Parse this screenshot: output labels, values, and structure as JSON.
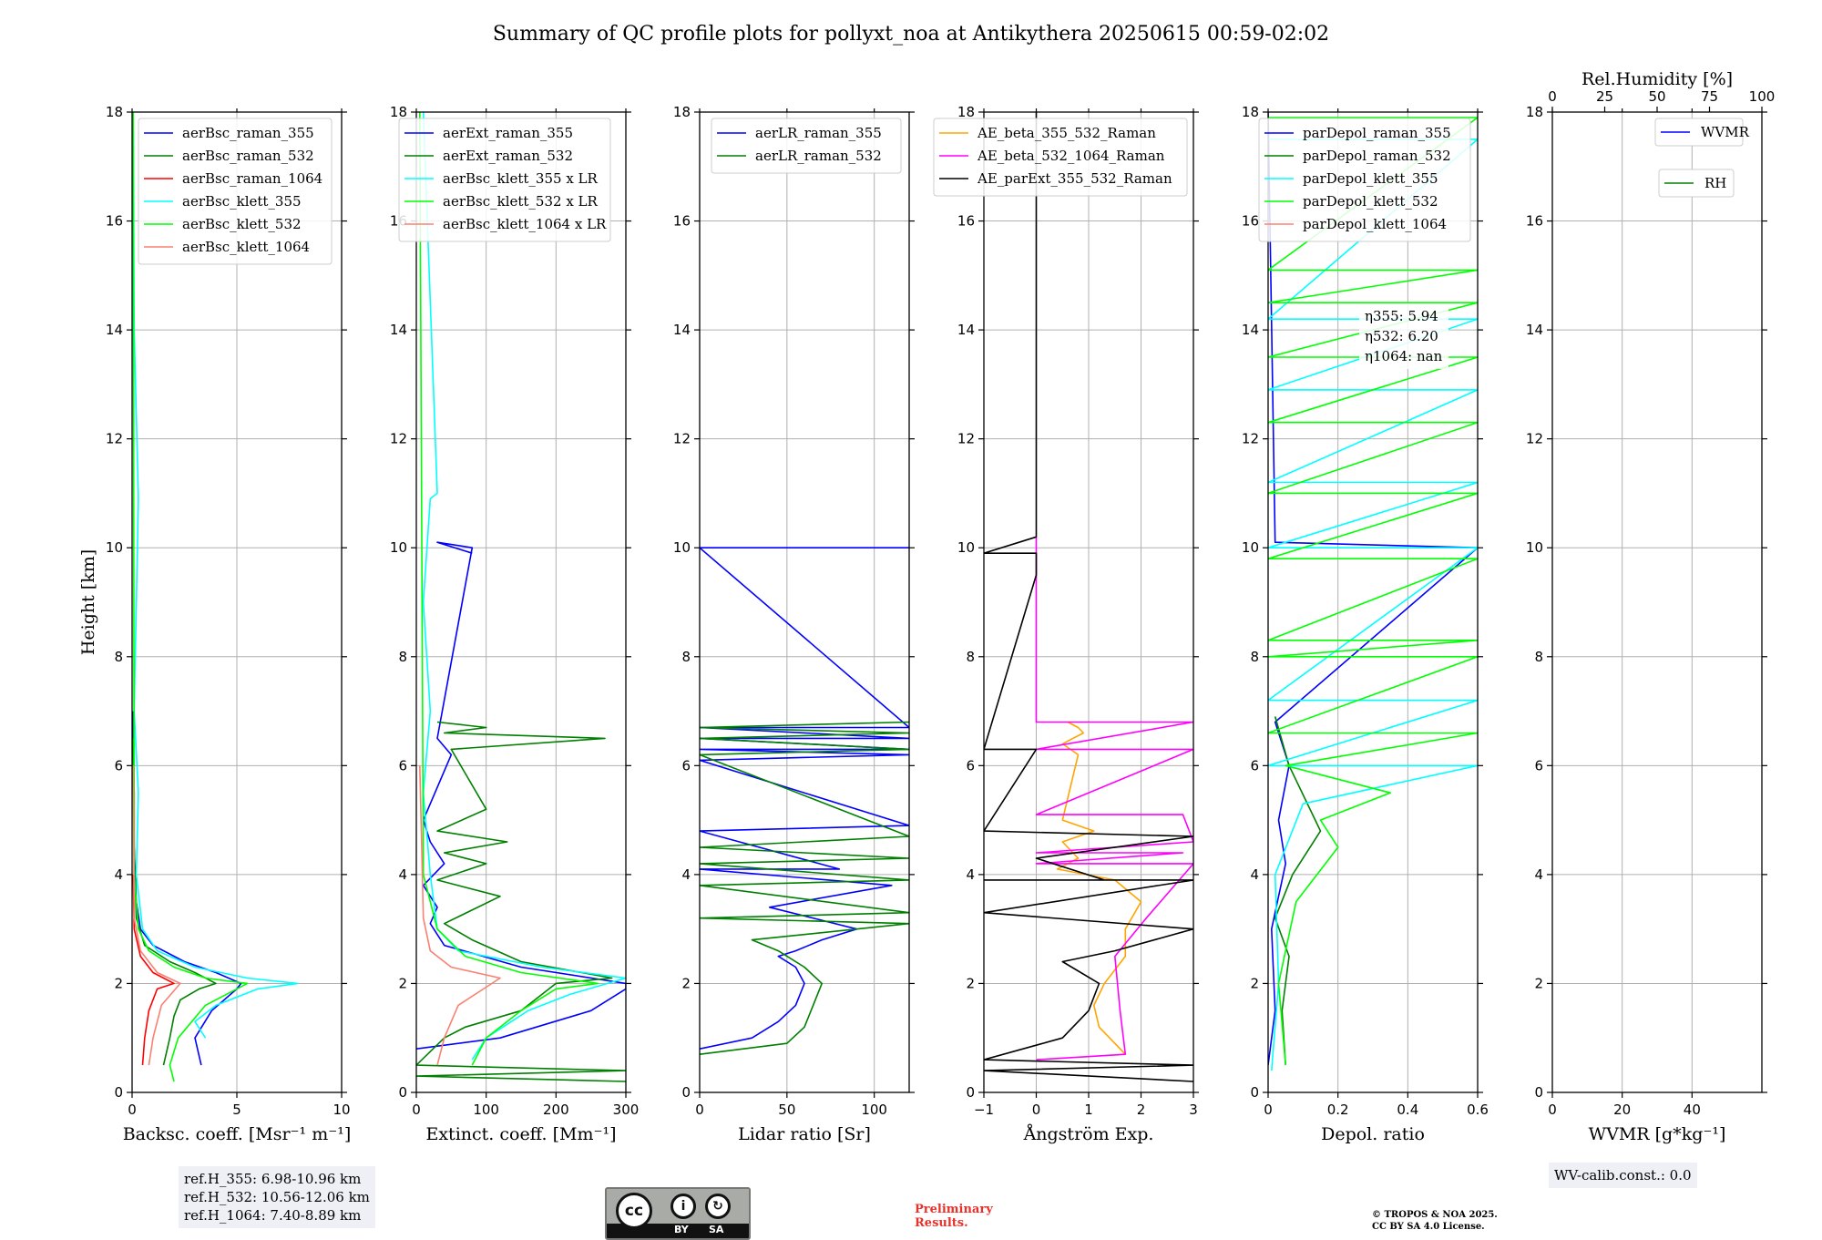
{
  "title": "Summary of QC profile plots for pollyxt_noa at Antikythera 20250615 00:59-02:02",
  "footer": {
    "ref_heights": [
      "ref.H_355: 6.98-10.96 km",
      "ref.H_532: 10.56-12.06 km",
      "ref.H_1064: 7.40-8.89 km"
    ],
    "license_badge": {
      "by": "BY",
      "sa": "SA"
    },
    "preliminary": [
      "Preliminary",
      "Results."
    ],
    "copyright": [
      "© TROPOS & NOA 2025.",
      "CC BY SA 4.0 License."
    ],
    "wv_calib": "WV-calib.const.: 0.0"
  },
  "colors": {
    "blue": "#0000ff",
    "green": "#008000",
    "red": "#ff0000",
    "cyan": "#00ffff",
    "lime": "#00ff00",
    "salmon": "#fa8072",
    "orange": "#ffa500",
    "magenta": "#ff00ff",
    "black": "#000000",
    "grid": "#b0b0b0"
  },
  "chart_data": [
    {
      "type": "line",
      "panel": "backscatter",
      "ylabel": "Height [km]",
      "xlabel": "Backsc. coeff. [Msr⁻¹ m⁻¹]",
      "xlim": [
        0,
        10
      ],
      "xticks": [
        0,
        5,
        10
      ],
      "ylim": [
        0,
        18
      ],
      "yticks": [
        0,
        2,
        4,
        6,
        8,
        10,
        12,
        14,
        16,
        18
      ],
      "grid": true,
      "legend_position": "top-right",
      "series": [
        {
          "name": "aerBsc_raman_355",
          "color": "#0000ff",
          "x": [
            3.3,
            3.0,
            3.8,
            5.0,
            5.2,
            4.0,
            2.5,
            1.0,
            0.4,
            0.2,
            0.1,
            0.1,
            0.05,
            0.05
          ],
          "y": [
            0.5,
            1.0,
            1.5,
            1.9,
            2.0,
            2.2,
            2.4,
            2.7,
            3.0,
            3.5,
            4.5,
            5.5,
            6.5,
            7.0
          ]
        },
        {
          "name": "aerBsc_raman_532",
          "color": "#008000",
          "x": [
            1.5,
            1.8,
            2.0,
            2.3,
            3.2,
            4.0,
            3.0,
            1.8,
            0.6,
            0.2,
            0.1,
            0.05
          ],
          "y": [
            0.5,
            1.0,
            1.4,
            1.7,
            1.9,
            2.0,
            2.2,
            2.4,
            2.7,
            3.2,
            4.5,
            6.5
          ]
        },
        {
          "name": "aerBsc_raman_1064",
          "color": "#ff0000",
          "x": [
            0.5,
            0.6,
            0.8,
            1.2,
            2.0,
            1.0,
            0.4,
            0.1,
            0.05
          ],
          "y": [
            0.5,
            1.0,
            1.5,
            1.9,
            2.0,
            2.2,
            2.5,
            3.0,
            4.0
          ]
        },
        {
          "name": "aerBsc_klett_355",
          "color": "#00ffff",
          "x": [
            3.5,
            3.0,
            4.0,
            6.0,
            7.9,
            5.5,
            3.0,
            1.2,
            0.5,
            0.2,
            0.3,
            0.1,
            0.3,
            0.1,
            0.05
          ],
          "y": [
            1.0,
            1.3,
            1.6,
            1.9,
            2.0,
            2.1,
            2.3,
            2.6,
            3.0,
            4.0,
            5.5,
            7.0,
            10.9,
            14.0,
            18.0
          ]
        },
        {
          "name": "aerBsc_klett_532",
          "color": "#00ff00",
          "x": [
            2.0,
            1.8,
            2.2,
            3.5,
            5.5,
            3.5,
            2.0,
            0.8,
            0.3,
            0.1,
            0.05
          ],
          "y": [
            0.2,
            0.5,
            1.0,
            1.6,
            2.0,
            2.1,
            2.3,
            2.6,
            3.0,
            4.0,
            18.0
          ]
        },
        {
          "name": "aerBsc_klett_1064",
          "color": "#fa8072",
          "x": [
            0.8,
            1.0,
            1.4,
            2.3,
            1.2,
            0.4,
            0.1,
            0.05
          ],
          "y": [
            0.5,
            1.0,
            1.6,
            2.0,
            2.2,
            2.6,
            3.2,
            6.0
          ]
        }
      ]
    },
    {
      "type": "line",
      "panel": "extinction",
      "xlabel": "Extinct. coeff. [Mm⁻¹]",
      "xlim": [
        0,
        300
      ],
      "xticks": [
        0,
        100,
        200,
        300
      ],
      "ylim": [
        0,
        18
      ],
      "yticks": [
        0,
        2,
        4,
        6,
        8,
        10,
        12,
        14,
        16,
        18
      ],
      "grid": true,
      "legend_position": "top-left",
      "series": [
        {
          "name": "aerExt_raman_355",
          "color": "#0000ff",
          "x": [
            0,
            120,
            250,
            300,
            300,
            150,
            40,
            20,
            30,
            10,
            40,
            20,
            10,
            20,
            50,
            30,
            80,
            30,
            80
          ],
          "y": [
            0.8,
            1.0,
            1.5,
            1.9,
            2.0,
            2.3,
            2.7,
            3.1,
            3.4,
            3.8,
            4.2,
            4.6,
            5.0,
            5.3,
            6.2,
            6.5,
            10.0,
            10.1,
            9.9
          ]
        },
        {
          "name": "aerExt_raman_532",
          "color": "#008000",
          "x": [
            300,
            0,
            300,
            0,
            40,
            70,
            150,
            200,
            280,
            150,
            80,
            40,
            120,
            30,
            100,
            40,
            130,
            30,
            100,
            50,
            270,
            40,
            100,
            30
          ],
          "y": [
            0.2,
            0.3,
            0.4,
            0.5,
            1.0,
            1.2,
            1.5,
            2.0,
            2.1,
            2.4,
            2.8,
            3.1,
            3.6,
            3.9,
            4.2,
            4.4,
            4.6,
            4.8,
            5.2,
            6.3,
            6.5,
            6.6,
            6.7,
            6.8
          ]
        },
        {
          "name": "aerBsc_klett_355 x LR",
          "color": "#00ffff",
          "x": [
            80,
            100,
            160,
            220,
            300,
            180,
            60,
            30,
            20,
            10,
            20,
            10,
            20,
            30,
            10
          ],
          "y": [
            0.6,
            1.0,
            1.5,
            1.8,
            2.1,
            2.3,
            2.6,
            3.0,
            4.0,
            5.5,
            7.0,
            9.0,
            10.9,
            11.0,
            18.0
          ]
        },
        {
          "name": "aerBsc_klett_532 x LR",
          "color": "#00ff00",
          "x": [
            80,
            100,
            150,
            200,
            260,
            150,
            70,
            30,
            10,
            5
          ],
          "y": [
            0.5,
            1.0,
            1.5,
            1.9,
            2.0,
            2.2,
            2.5,
            3.0,
            4.0,
            18.0
          ]
        },
        {
          "name": "aerBsc_klett_1064 x LR",
          "color": "#fa8072",
          "x": [
            30,
            40,
            60,
            120,
            50,
            20,
            10,
            5
          ],
          "y": [
            0.5,
            1.0,
            1.6,
            2.1,
            2.3,
            2.6,
            3.2,
            6.0
          ]
        }
      ]
    },
    {
      "type": "line",
      "panel": "lidar_ratio",
      "xlabel": "Lidar ratio [Sr]",
      "xlim": [
        0,
        120
      ],
      "xticks": [
        0,
        50,
        100
      ],
      "ylim": [
        0,
        18
      ],
      "yticks": [
        0,
        2,
        4,
        6,
        8,
        10,
        12,
        14,
        16,
        18
      ],
      "grid": true,
      "legend_position": "top-right",
      "series": [
        {
          "name": "aerLR_raman_355",
          "color": "#0000ff",
          "x": [
            0,
            30,
            45,
            55,
            60,
            55,
            45,
            55,
            70,
            90,
            40,
            110,
            0,
            80,
            0,
            120,
            0,
            120,
            0,
            120,
            0,
            120,
            0,
            120,
            0,
            120
          ],
          "y": [
            0.8,
            1.0,
            1.3,
            1.6,
            2.0,
            2.3,
            2.5,
            2.6,
            2.8,
            3.0,
            3.4,
            3.8,
            4.1,
            4.1,
            4.8,
            4.9,
            6.1,
            6.2,
            6.3,
            6.3,
            6.5,
            6.5,
            6.7,
            6.7,
            10.0,
            10.0
          ]
        },
        {
          "name": "aerLR_raman_532",
          "color": "#008000",
          "x": [
            0,
            50,
            60,
            65,
            70,
            60,
            45,
            30,
            120,
            0,
            120,
            0,
            120,
            0,
            120,
            0,
            120,
            0,
            120,
            0,
            120,
            0,
            120
          ],
          "y": [
            0.7,
            0.9,
            1.2,
            1.6,
            2.0,
            2.3,
            2.6,
            2.8,
            3.1,
            3.2,
            3.3,
            3.8,
            3.9,
            4.2,
            4.3,
            4.5,
            4.7,
            6.2,
            6.3,
            6.5,
            6.6,
            6.7,
            6.8
          ]
        }
      ]
    },
    {
      "type": "line",
      "panel": "angstrom",
      "xlabel": "Ångström Exp.",
      "xlim": [
        -1,
        3
      ],
      "xticks": [
        -1,
        0,
        1,
        2,
        3
      ],
      "ylim": [
        0,
        18
      ],
      "yticks": [
        0,
        2,
        4,
        6,
        8,
        10,
        12,
        14,
        16,
        18
      ],
      "grid": true,
      "legend_position": "top-left",
      "series": [
        {
          "name": "AE_beta_355_532_Raman",
          "color": "#ffa500",
          "x": [
            1.7,
            1.5,
            1.2,
            1.1,
            1.3,
            1.7,
            1.7,
            2.0,
            1.5,
            0.4,
            0.8,
            0.5,
            1.1,
            0.5,
            0.8,
            0.5,
            0.9,
            0.8,
            0.6
          ],
          "y": [
            0.7,
            0.9,
            1.2,
            1.6,
            2.0,
            2.5,
            3.0,
            3.5,
            3.9,
            4.1,
            4.3,
            4.6,
            4.8,
            5.0,
            6.2,
            6.4,
            6.6,
            6.7,
            6.8
          ]
        },
        {
          "name": "AE_beta_532_1064_Raman",
          "color": "#ff00ff",
          "x": [
            0,
            1.7,
            1.6,
            1.5,
            2.1,
            3.0,
            2.4,
            0,
            2.8,
            0,
            3.0,
            2.8,
            0,
            3.0,
            0,
            3.0,
            0,
            0,
            0
          ],
          "y": [
            0.6,
            0.7,
            1.5,
            2.5,
            3.2,
            4.2,
            4.2,
            4.2,
            4.4,
            4.4,
            4.6,
            5.1,
            5.1,
            6.3,
            6.3,
            6.8,
            6.8,
            9.6,
            10.2
          ]
        },
        {
          "name": "AE_parExt_355_532_Raman",
          "color": "#000000",
          "x": [
            3.0,
            -1.0,
            3.0,
            -1.0,
            0.5,
            1.0,
            1.2,
            0.5,
            1.5,
            3.0,
            -1.0,
            3.0,
            -1.0,
            1.3,
            0,
            3.0,
            -1.0,
            0,
            -1.0,
            0,
            0,
            -1.0,
            0,
            0
          ],
          "y": [
            0.2,
            0.4,
            0.5,
            0.6,
            1.0,
            1.5,
            2.0,
            2.4,
            2.6,
            3.0,
            3.3,
            3.9,
            3.9,
            3.9,
            4.3,
            4.7,
            4.8,
            6.3,
            6.3,
            9.5,
            9.9,
            9.9,
            10.2,
            18.0
          ]
        }
      ]
    },
    {
      "type": "line",
      "panel": "depolarization",
      "xlabel": "Depol. ratio",
      "xlim": [
        0.0,
        0.6
      ],
      "xticks": [
        0.0,
        0.2,
        0.4,
        0.6
      ],
      "ylim": [
        0,
        18
      ],
      "yticks": [
        0,
        2,
        4,
        6,
        8,
        10,
        12,
        14,
        16,
        18
      ],
      "grid": true,
      "legend_position": "top-left",
      "annotations": [
        "η355: 5.94",
        "η532: 6.20",
        "η1064: nan"
      ],
      "series": [
        {
          "name": "parDepol_raman_355",
          "color": "#0000ff",
          "x": [
            0.0,
            0.02,
            0.01,
            0.05,
            0.03,
            0.06,
            0.02,
            0.6,
            0.02,
            0.0
          ],
          "y": [
            0.5,
            1.5,
            3.0,
            4.2,
            5.0,
            6.0,
            6.8,
            10.0,
            10.1,
            18.0
          ]
        },
        {
          "name": "parDepol_raman_532",
          "color": "#008000",
          "x": [
            0.05,
            0.04,
            0.06,
            0.02,
            0.07,
            0.15,
            0.06,
            0.02
          ],
          "y": [
            0.5,
            1.5,
            2.5,
            3.2,
            4.0,
            4.8,
            6.0,
            6.9
          ]
        },
        {
          "name": "parDepol_klett_355",
          "color": "#00ffff",
          "x": [
            0.01,
            0.03,
            0.02,
            0.1,
            0.6,
            0.0,
            0.6,
            0.0,
            0.6,
            0.0,
            0.6,
            0.0,
            0.6,
            0.0,
            0.6,
            0.0,
            0.6,
            0.0
          ],
          "y": [
            0.4,
            2.0,
            4.0,
            5.3,
            6.0,
            6.0,
            7.2,
            7.2,
            10.0,
            10.0,
            11.2,
            11.2,
            12.9,
            12.9,
            14.2,
            14.2,
            17.5,
            17.5
          ]
        },
        {
          "name": "parDepol_klett_532",
          "color": "#00ff00",
          "x": [
            0.05,
            0.03,
            0.08,
            0.2,
            0.15,
            0.35,
            0.05,
            0.6,
            0.0,
            0.6,
            0.0,
            0.6,
            0.0,
            0.6,
            0.0,
            0.6,
            0.0,
            0.6,
            0.0,
            0.6,
            0.0,
            0.6,
            0.0,
            0.6,
            0.0,
            0.6,
            0.0
          ],
          "y": [
            0.5,
            2.0,
            3.5,
            4.5,
            5.0,
            5.5,
            6.0,
            6.6,
            6.6,
            8.0,
            8.0,
            8.3,
            8.3,
            9.8,
            9.8,
            11.0,
            11.0,
            12.3,
            12.3,
            13.5,
            13.5,
            14.5,
            14.5,
            15.1,
            15.1,
            17.9,
            17.9
          ]
        },
        {
          "name": "parDepol_klett_1064",
          "color": "#fa8072",
          "x": [],
          "y": []
        }
      ]
    },
    {
      "type": "line",
      "panel": "water_vapor",
      "xlabel": "WVMR [g*kg⁻¹]",
      "top_xlabel": "Rel.Humidity [%]",
      "xlim": [
        0,
        60
      ],
      "xticks": [
        0,
        20,
        40
      ],
      "top_xlim": [
        0,
        100
      ],
      "top_xticks": [
        0,
        25,
        50,
        75,
        100
      ],
      "ylim": [
        0,
        18
      ],
      "yticks": [
        0,
        2,
        4,
        6,
        8,
        10,
        12,
        14,
        16,
        18
      ],
      "grid": true,
      "legend_position": "top-right",
      "series": [
        {
          "name": "WVMR",
          "color": "#0000ff",
          "x": [],
          "y": []
        },
        {
          "name": "RH",
          "color": "#008000",
          "x": [],
          "y": []
        }
      ]
    }
  ]
}
